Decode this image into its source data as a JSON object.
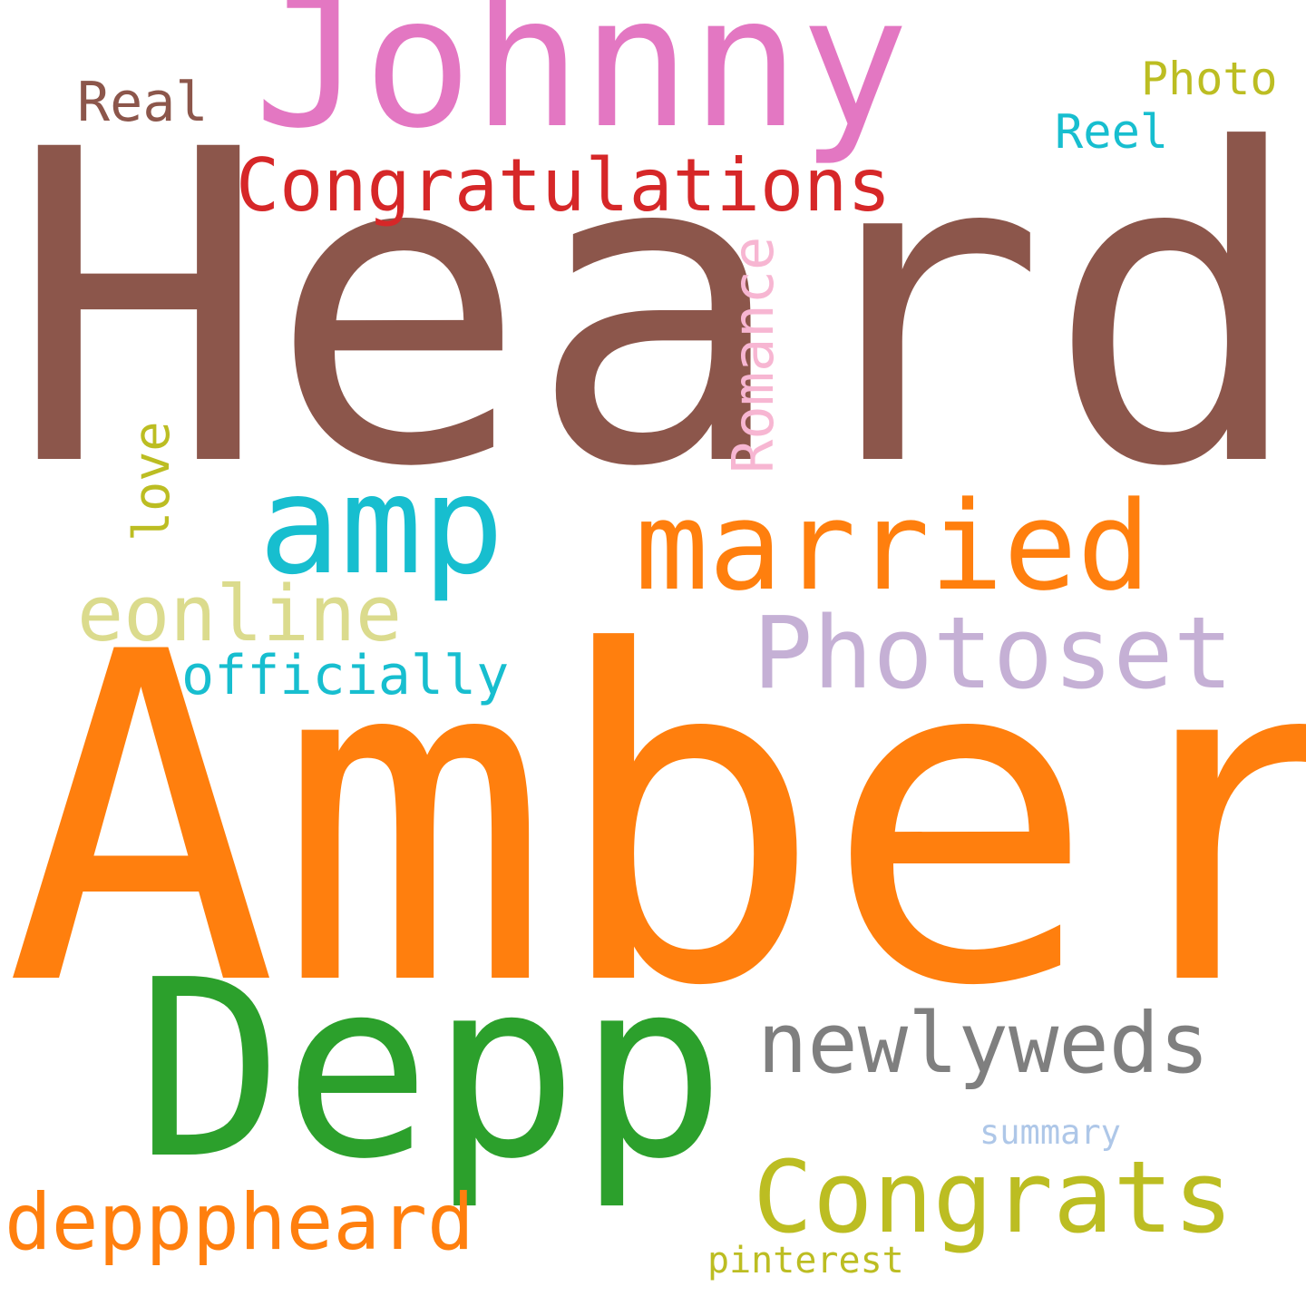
{
  "words": [
    {
      "text": "Heard",
      "color": "#8c564b",
      "vertical": false
    },
    {
      "text": "Amber",
      "color": "#ff7f0e",
      "vertical": false
    },
    {
      "text": "Johnny",
      "color": "#e377c2",
      "vertical": false
    },
    {
      "text": "Depp",
      "color": "#2ca02c",
      "vertical": false
    },
    {
      "text": "amp",
      "color": "#17becf",
      "vertical": false
    },
    {
      "text": "married",
      "color": "#ff7f0e",
      "vertical": false
    },
    {
      "text": "Photoset",
      "color": "#c5b0d5",
      "vertical": false
    },
    {
      "text": "newlyweds",
      "color": "#7f7f7f",
      "vertical": false
    },
    {
      "text": "Congrats",
      "color": "#bcbd22",
      "vertical": false
    },
    {
      "text": "Congratulations",
      "color": "#d62728",
      "vertical": false
    },
    {
      "text": "eonline",
      "color": "#dbdb8d",
      "vertical": false
    },
    {
      "text": "depppheard",
      "color": "#ff7f0e",
      "vertical": false
    },
    {
      "text": "officially",
      "color": "#17becf",
      "vertical": false
    },
    {
      "text": "Romance",
      "color": "#f7b6d2",
      "vertical": true
    },
    {
      "text": "Real",
      "color": "#8c564b",
      "vertical": false
    },
    {
      "text": "Photo",
      "color": "#bcbd22",
      "vertical": false
    },
    {
      "text": "Reel",
      "color": "#17becf",
      "vertical": false
    },
    {
      "text": "love",
      "color": "#bcbd22",
      "vertical": true
    },
    {
      "text": "summary",
      "color": "#aec7e8",
      "vertical": false
    },
    {
      "text": "pinterest",
      "color": "#bcbd22",
      "vertical": false
    }
  ]
}
